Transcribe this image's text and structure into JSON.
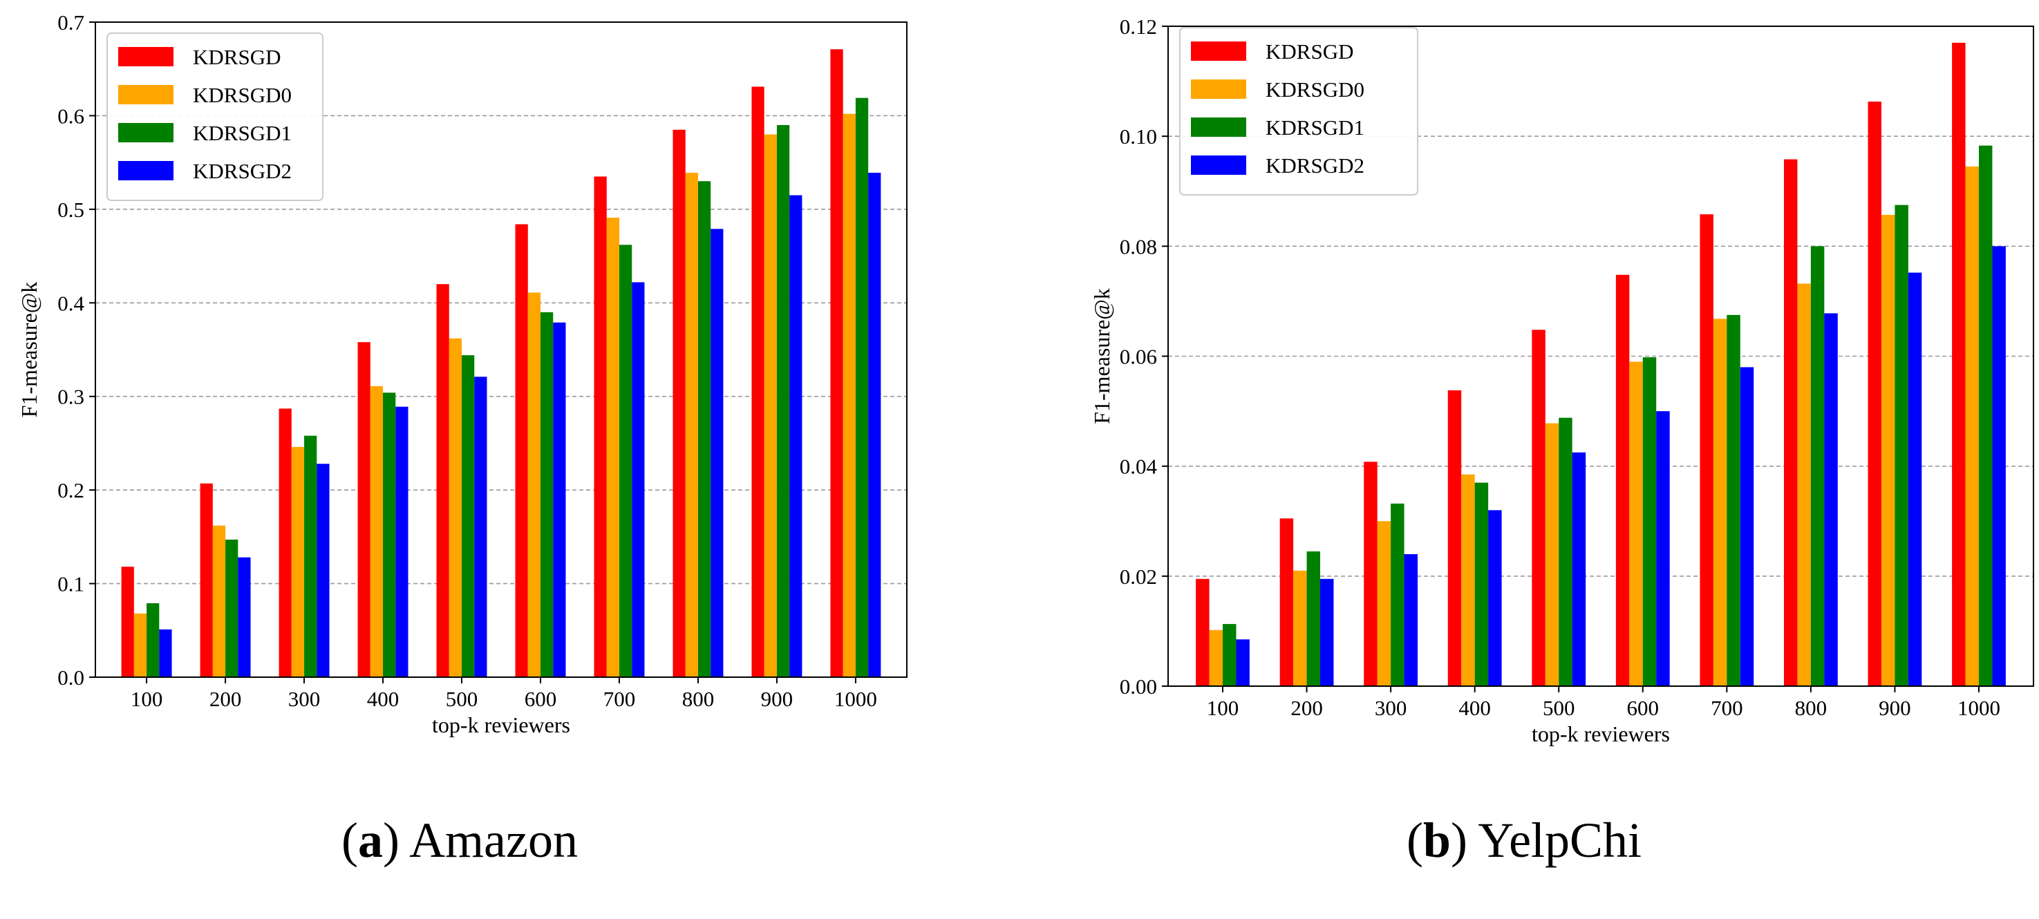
{
  "chart_data": [
    {
      "type": "bar",
      "panel": "a",
      "caption_letter": "a",
      "caption_text": "Amazon",
      "xlabel": "top-k reviewers",
      "ylabel": "F1-measure@k",
      "ylim": [
        0,
        0.7
      ],
      "yticks": [
        "0.0",
        "0.1",
        "0.2",
        "0.3",
        "0.4",
        "0.5",
        "0.6",
        "0.7"
      ],
      "grid": "horizontal dashed",
      "legend_position": "top-left",
      "categories": [
        "100",
        "200",
        "300",
        "400",
        "500",
        "600",
        "700",
        "800",
        "900",
        "1000"
      ],
      "series": [
        {
          "name": "KDRSGD",
          "color": "#ff0000",
          "values": [
            0.118,
            0.207,
            0.287,
            0.358,
            0.42,
            0.484,
            0.535,
            0.585,
            0.631,
            0.671
          ]
        },
        {
          "name": "KDRSGD0",
          "color": "#ffa500",
          "values": [
            0.068,
            0.162,
            0.246,
            0.311,
            0.362,
            0.411,
            0.491,
            0.539,
            0.58,
            0.602
          ]
        },
        {
          "name": "KDRSGD1",
          "color": "#008000",
          "values": [
            0.079,
            0.147,
            0.258,
            0.304,
            0.344,
            0.39,
            0.462,
            0.53,
            0.59,
            0.619
          ]
        },
        {
          "name": "KDRSGD2",
          "color": "#0000ff",
          "values": [
            0.051,
            0.128,
            0.228,
            0.289,
            0.321,
            0.379,
            0.422,
            0.479,
            0.515,
            0.539
          ]
        }
      ]
    },
    {
      "type": "bar",
      "panel": "b",
      "caption_letter": "b",
      "caption_text": "YelpChi",
      "xlabel": "top-k reviewers",
      "ylabel": "F1-measure@k",
      "ylim": [
        0,
        0.12
      ],
      "yticks": [
        "0.00",
        "0.02",
        "0.04",
        "0.06",
        "0.08",
        "0.10",
        "0.12"
      ],
      "grid": "horizontal dashed",
      "legend_position": "top-left",
      "categories": [
        "100",
        "200",
        "300",
        "400",
        "500",
        "600",
        "700",
        "800",
        "900",
        "1000"
      ],
      "series": [
        {
          "name": "KDRSGD",
          "color": "#ff0000",
          "values": [
            0.0195,
            0.0305,
            0.0408,
            0.0538,
            0.0648,
            0.0748,
            0.0858,
            0.0958,
            0.1063,
            0.117
          ]
        },
        {
          "name": "KDRSGD0",
          "color": "#ffa500",
          "values": [
            0.0102,
            0.021,
            0.03,
            0.0385,
            0.0478,
            0.059,
            0.0668,
            0.0732,
            0.0857,
            0.0945
          ]
        },
        {
          "name": "KDRSGD1",
          "color": "#008000",
          "values": [
            0.0113,
            0.0245,
            0.0332,
            0.037,
            0.0488,
            0.0598,
            0.0675,
            0.08,
            0.0875,
            0.0983
          ]
        },
        {
          "name": "KDRSGD2",
          "color": "#0000ff",
          "values": [
            0.0085,
            0.0195,
            0.024,
            0.032,
            0.0425,
            0.05,
            0.058,
            0.0678,
            0.0752,
            0.08
          ]
        }
      ]
    }
  ]
}
